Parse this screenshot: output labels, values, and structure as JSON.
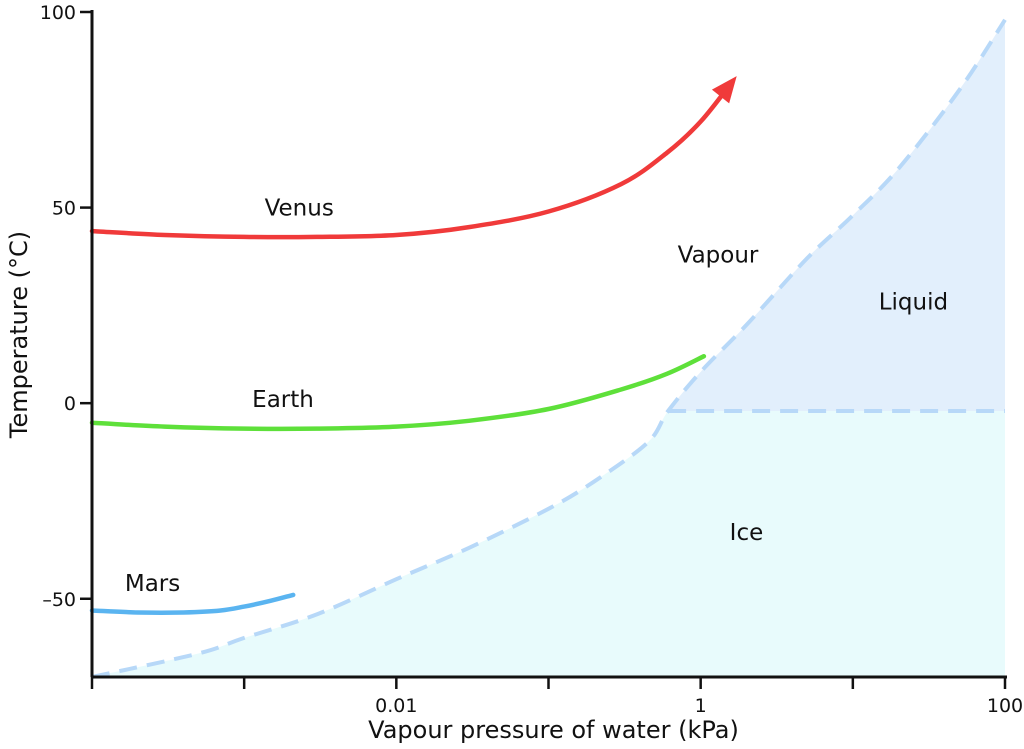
{
  "chart_data": {
    "type": "line",
    "xlabel": "Vapour pressure of water (kPa)",
    "ylabel": "Temperature (°C)",
    "x_scale": "log",
    "xlim": [
      0.0001,
      100
    ],
    "ylim": [
      -70,
      100
    ],
    "x_ticks": [
      0.0001,
      0.001,
      0.01,
      0.1,
      1,
      10,
      100
    ],
    "x_tick_labels": [
      "",
      "",
      "0.01",
      "",
      "1",
      "",
      "100"
    ],
    "y_ticks": [
      100,
      50,
      0,
      -50
    ],
    "y_tick_labels": [
      "100",
      "50",
      "0",
      "–50"
    ],
    "series": [
      {
        "name": "Venus",
        "color": "#f03a3a",
        "arrow": true,
        "x": [
          0.0001,
          0.0003,
          0.001,
          0.003,
          0.01,
          0.03,
          0.1,
          0.3,
          0.6,
          1.0,
          1.6
        ],
        "y": [
          44,
          43,
          42.5,
          42.5,
          43,
          45,
          49,
          56,
          64,
          72,
          82
        ]
      },
      {
        "name": "Earth",
        "color": "#5ee03a",
        "x": [
          0.0001,
          0.0003,
          0.001,
          0.003,
          0.01,
          0.03,
          0.1,
          0.3,
          0.6,
          1.05
        ],
        "y": [
          -5,
          -6,
          -6.5,
          -6.5,
          -6,
          -4.5,
          -1.5,
          3.5,
          7.5,
          12
        ]
      },
      {
        "name": "Mars",
        "color": "#5ab4f0",
        "x": [
          0.0001,
          0.0002,
          0.0004,
          0.0007,
          0.001,
          0.0015,
          0.0021
        ],
        "y": [
          -53,
          -53.5,
          -53.5,
          -53,
          -52,
          -50.5,
          -49
        ]
      }
    ],
    "boundaries": [
      {
        "color": "#b7d8f8",
        "style": "dashed",
        "x": [
          0.0001,
          0.0005,
          0.001,
          0.003,
          0.01,
          0.03,
          0.1,
          0.2,
          0.45,
          0.611,
          1.0,
          2.0,
          5.0,
          10,
          20,
          50,
          100
        ],
        "y": [
          -70,
          -64,
          -60,
          -54,
          -45,
          -37,
          -27,
          -20,
          -10,
          -2,
          8,
          20,
          37,
          48,
          60,
          80,
          98
        ]
      },
      {
        "color": "#b7d8f8",
        "style": "dashed",
        "x": [
          0.611,
          100
        ],
        "y": [
          -2,
          -2
        ]
      }
    ],
    "regions": [
      {
        "label": "Vapour",
        "color": "#ffffff",
        "label_x": 1.3,
        "label_y": 36
      },
      {
        "label": "Liquid",
        "color": "#e2effc",
        "label_x": 25,
        "label_y": 24
      },
      {
        "label": "Ice",
        "color": "#e8fbfc",
        "label_x": 2.0,
        "label_y": -35
      }
    ],
    "series_label_positions": [
      {
        "name": "Venus",
        "x": 0.0023,
        "y": 48
      },
      {
        "name": "Earth",
        "x": 0.0018,
        "y": -1
      },
      {
        "name": "Mars",
        "x": 0.00025,
        "y": -48
      }
    ]
  }
}
